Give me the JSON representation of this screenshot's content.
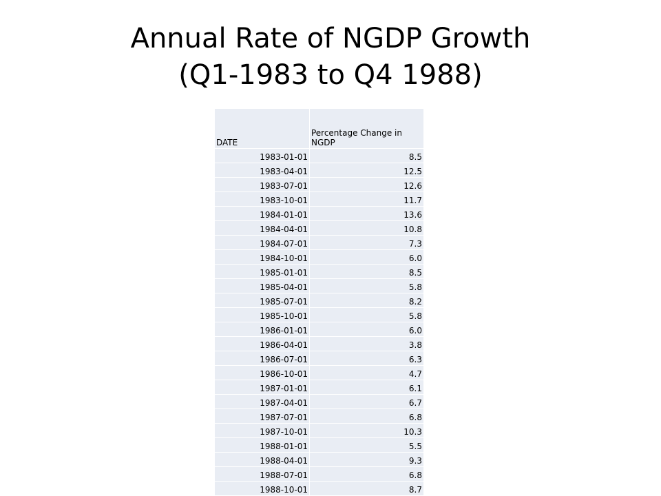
{
  "title": {
    "line1": "Annual Rate of NGDP Growth",
    "line2": "(Q1-1983 to Q4 1988)"
  },
  "table": {
    "headers": [
      "DATE",
      "Percentage Change in NGDP"
    ],
    "rows": [
      [
        "1983-01-01",
        "8.5"
      ],
      [
        "1983-04-01",
        "12.5"
      ],
      [
        "1983-07-01",
        "12.6"
      ],
      [
        "1983-10-01",
        "11.7"
      ],
      [
        "1984-01-01",
        "13.6"
      ],
      [
        "1984-04-01",
        "10.8"
      ],
      [
        "1984-07-01",
        "7.3"
      ],
      [
        "1984-10-01",
        "6.0"
      ],
      [
        "1985-01-01",
        "8.5"
      ],
      [
        "1985-04-01",
        "5.8"
      ],
      [
        "1985-07-01",
        "8.2"
      ],
      [
        "1985-10-01",
        "5.8"
      ],
      [
        "1986-01-01",
        "6.0"
      ],
      [
        "1986-04-01",
        "3.8"
      ],
      [
        "1986-07-01",
        "6.3"
      ],
      [
        "1986-10-01",
        "4.7"
      ],
      [
        "1987-01-01",
        "6.1"
      ],
      [
        "1987-04-01",
        "6.7"
      ],
      [
        "1987-07-01",
        "6.8"
      ],
      [
        "1987-10-01",
        "10.3"
      ],
      [
        "1988-01-01",
        "5.5"
      ],
      [
        "1988-04-01",
        "9.3"
      ],
      [
        "1988-07-01",
        "6.8"
      ],
      [
        "1988-10-01",
        "8.7"
      ]
    ]
  }
}
